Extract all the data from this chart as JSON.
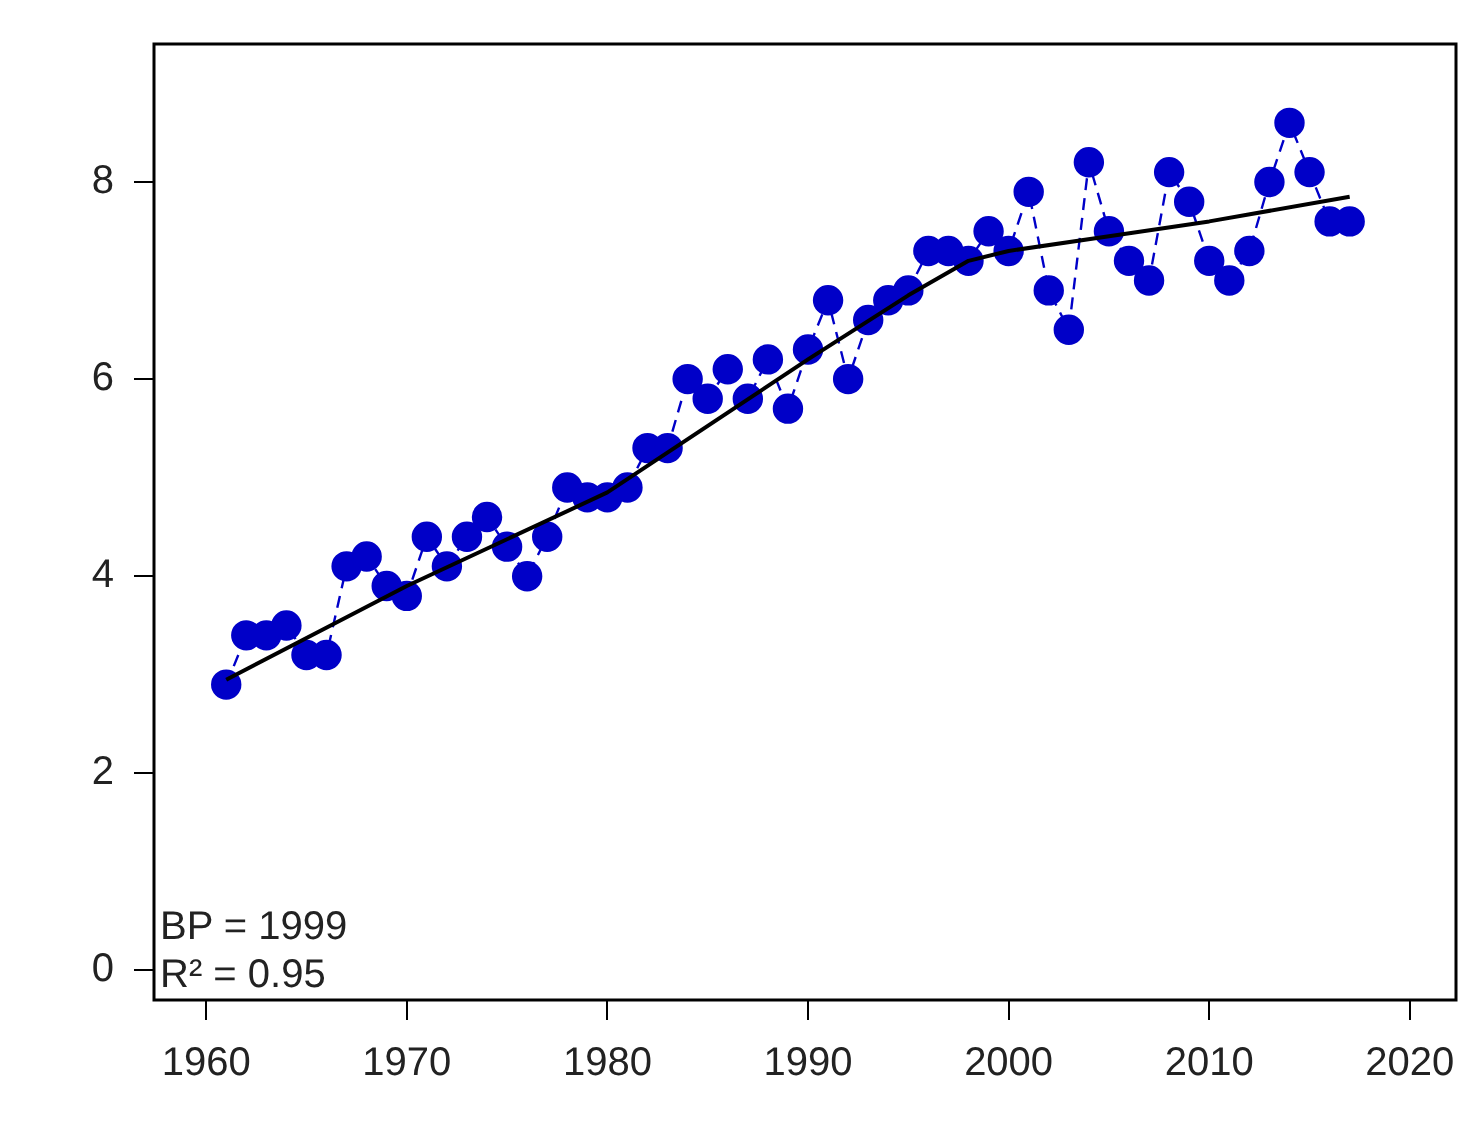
{
  "chart_data": {
    "type": "line",
    "x": [
      1961,
      1962,
      1963,
      1964,
      1965,
      1966,
      1967,
      1968,
      1969,
      1970,
      1971,
      1972,
      1973,
      1974,
      1975,
      1976,
      1977,
      1978,
      1979,
      1980,
      1981,
      1982,
      1983,
      1984,
      1985,
      1986,
      1987,
      1988,
      1989,
      1990,
      1991,
      1992,
      1993,
      1994,
      1995,
      1996,
      1997,
      1998,
      1999,
      2000,
      2001,
      2002,
      2003,
      2004,
      2005,
      2006,
      2007,
      2008,
      2009,
      2010,
      2011,
      2012,
      2013,
      2014,
      2015,
      2016,
      2017
    ],
    "series": [
      {
        "color": "#0000c8",
        "marker": "circle",
        "line_style": "dashed",
        "values": [
          2.9,
          3.4,
          3.4,
          3.5,
          3.2,
          3.2,
          4.1,
          4.2,
          3.9,
          3.8,
          4.4,
          4.1,
          4.4,
          4.6,
          4.3,
          4.0,
          4.4,
          4.9,
          4.8,
          4.8,
          4.9,
          5.3,
          5.3,
          6.0,
          5.8,
          6.1,
          5.8,
          6.2,
          5.7,
          6.3,
          6.8,
          6.0,
          6.6,
          6.8,
          6.9,
          7.3,
          7.3,
          7.2,
          7.5,
          7.3,
          7.9,
          6.9,
          6.5,
          8.2,
          7.5,
          7.2,
          7.0,
          8.1,
          7.8,
          7.2,
          7.0,
          7.3,
          8.0,
          8.6,
          8.1,
          7.6,
          7.6
        ]
      },
      {
        "color": "#000000",
        "marker": "none",
        "line_style": "solid",
        "x": [
          1961,
          1970,
          1980,
          1990,
          1995,
          1998,
          2000,
          2005,
          2010,
          2017
        ],
        "values": [
          2.95,
          3.9,
          4.85,
          6.2,
          6.85,
          7.2,
          7.3,
          7.45,
          7.6,
          7.85
        ]
      }
    ],
    "xlim": [
      1957.4,
      2022.3
    ],
    "xticks": [
      1960,
      1970,
      1980,
      1990,
      2000,
      2010,
      2020
    ],
    "ylim": [
      -0.3,
      9.4
    ],
    "yticks": [
      0,
      2,
      4,
      6,
      8
    ],
    "grid": false,
    "legend": false,
    "annotations": [
      "BP = 1999",
      "R² = 0.95"
    ]
  }
}
